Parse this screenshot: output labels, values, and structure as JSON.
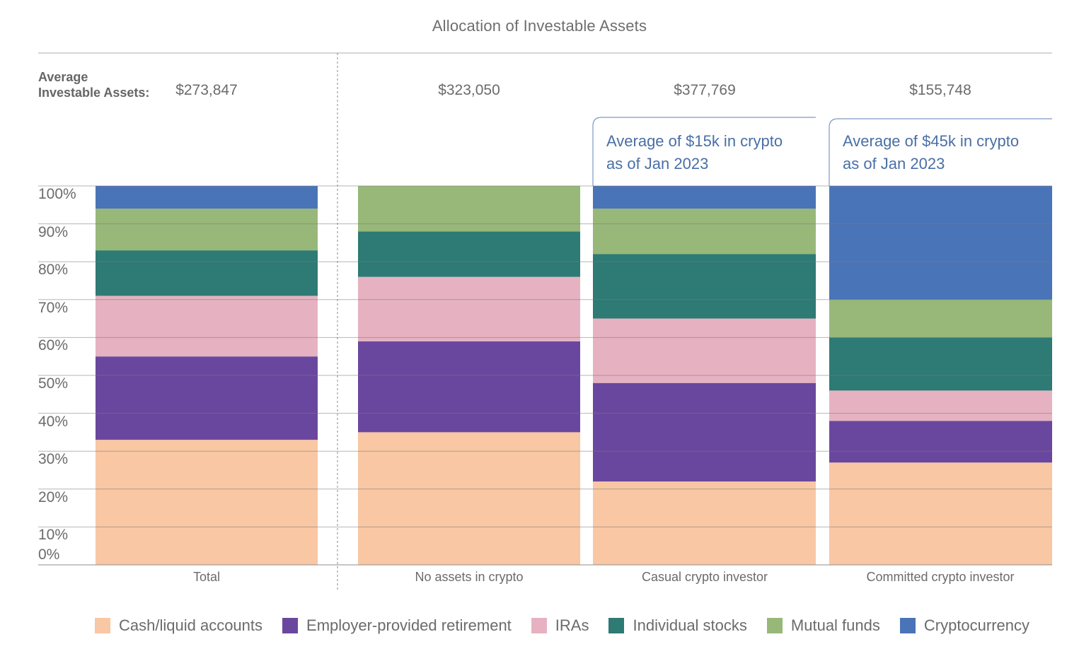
{
  "chart_data": {
    "type": "bar",
    "stacked": true,
    "title": "Allocation of Investable Assets",
    "average_label_line1": "Average",
    "average_label_line2": "Investable Assets:",
    "categories": [
      "Total",
      "No assets in crypto",
      "Casual crypto investor",
      "Committed crypto investor"
    ],
    "averages": [
      "$273,847",
      "$323,050",
      "$377,769",
      "$155,748"
    ],
    "callouts": [
      null,
      null,
      {
        "line1": "Average of $15k in crypto",
        "line2": "as of Jan 2023"
      },
      {
        "line1": "Average of $45k in crypto",
        "line2": "as of Jan 2023"
      }
    ],
    "y_ticks": [
      "0%",
      "10%",
      "20%",
      "30%",
      "40%",
      "50%",
      "60%",
      "70%",
      "80%",
      "90%",
      "100%"
    ],
    "ylim": [
      0,
      100
    ],
    "series": [
      {
        "name": "Cash/liquid accounts",
        "color": "#f9c7a3",
        "values": [
          33,
          35,
          22,
          27
        ]
      },
      {
        "name": "Employer-provided retirement",
        "color": "#6a479e",
        "values": [
          22,
          24,
          26,
          11
        ]
      },
      {
        "name": "IRAs",
        "color": "#e6b2c2",
        "values": [
          16,
          17,
          17,
          8
        ]
      },
      {
        "name": "Individual stocks",
        "color": "#2e7a74",
        "values": [
          12,
          12,
          17,
          14
        ]
      },
      {
        "name": "Mutual funds",
        "color": "#98b879",
        "values": [
          11,
          12,
          12,
          10
        ]
      },
      {
        "name": "Cryptocurrency",
        "color": "#4a74b8",
        "values": [
          6,
          0,
          6,
          30
        ]
      }
    ],
    "legend_position": "bottom"
  }
}
